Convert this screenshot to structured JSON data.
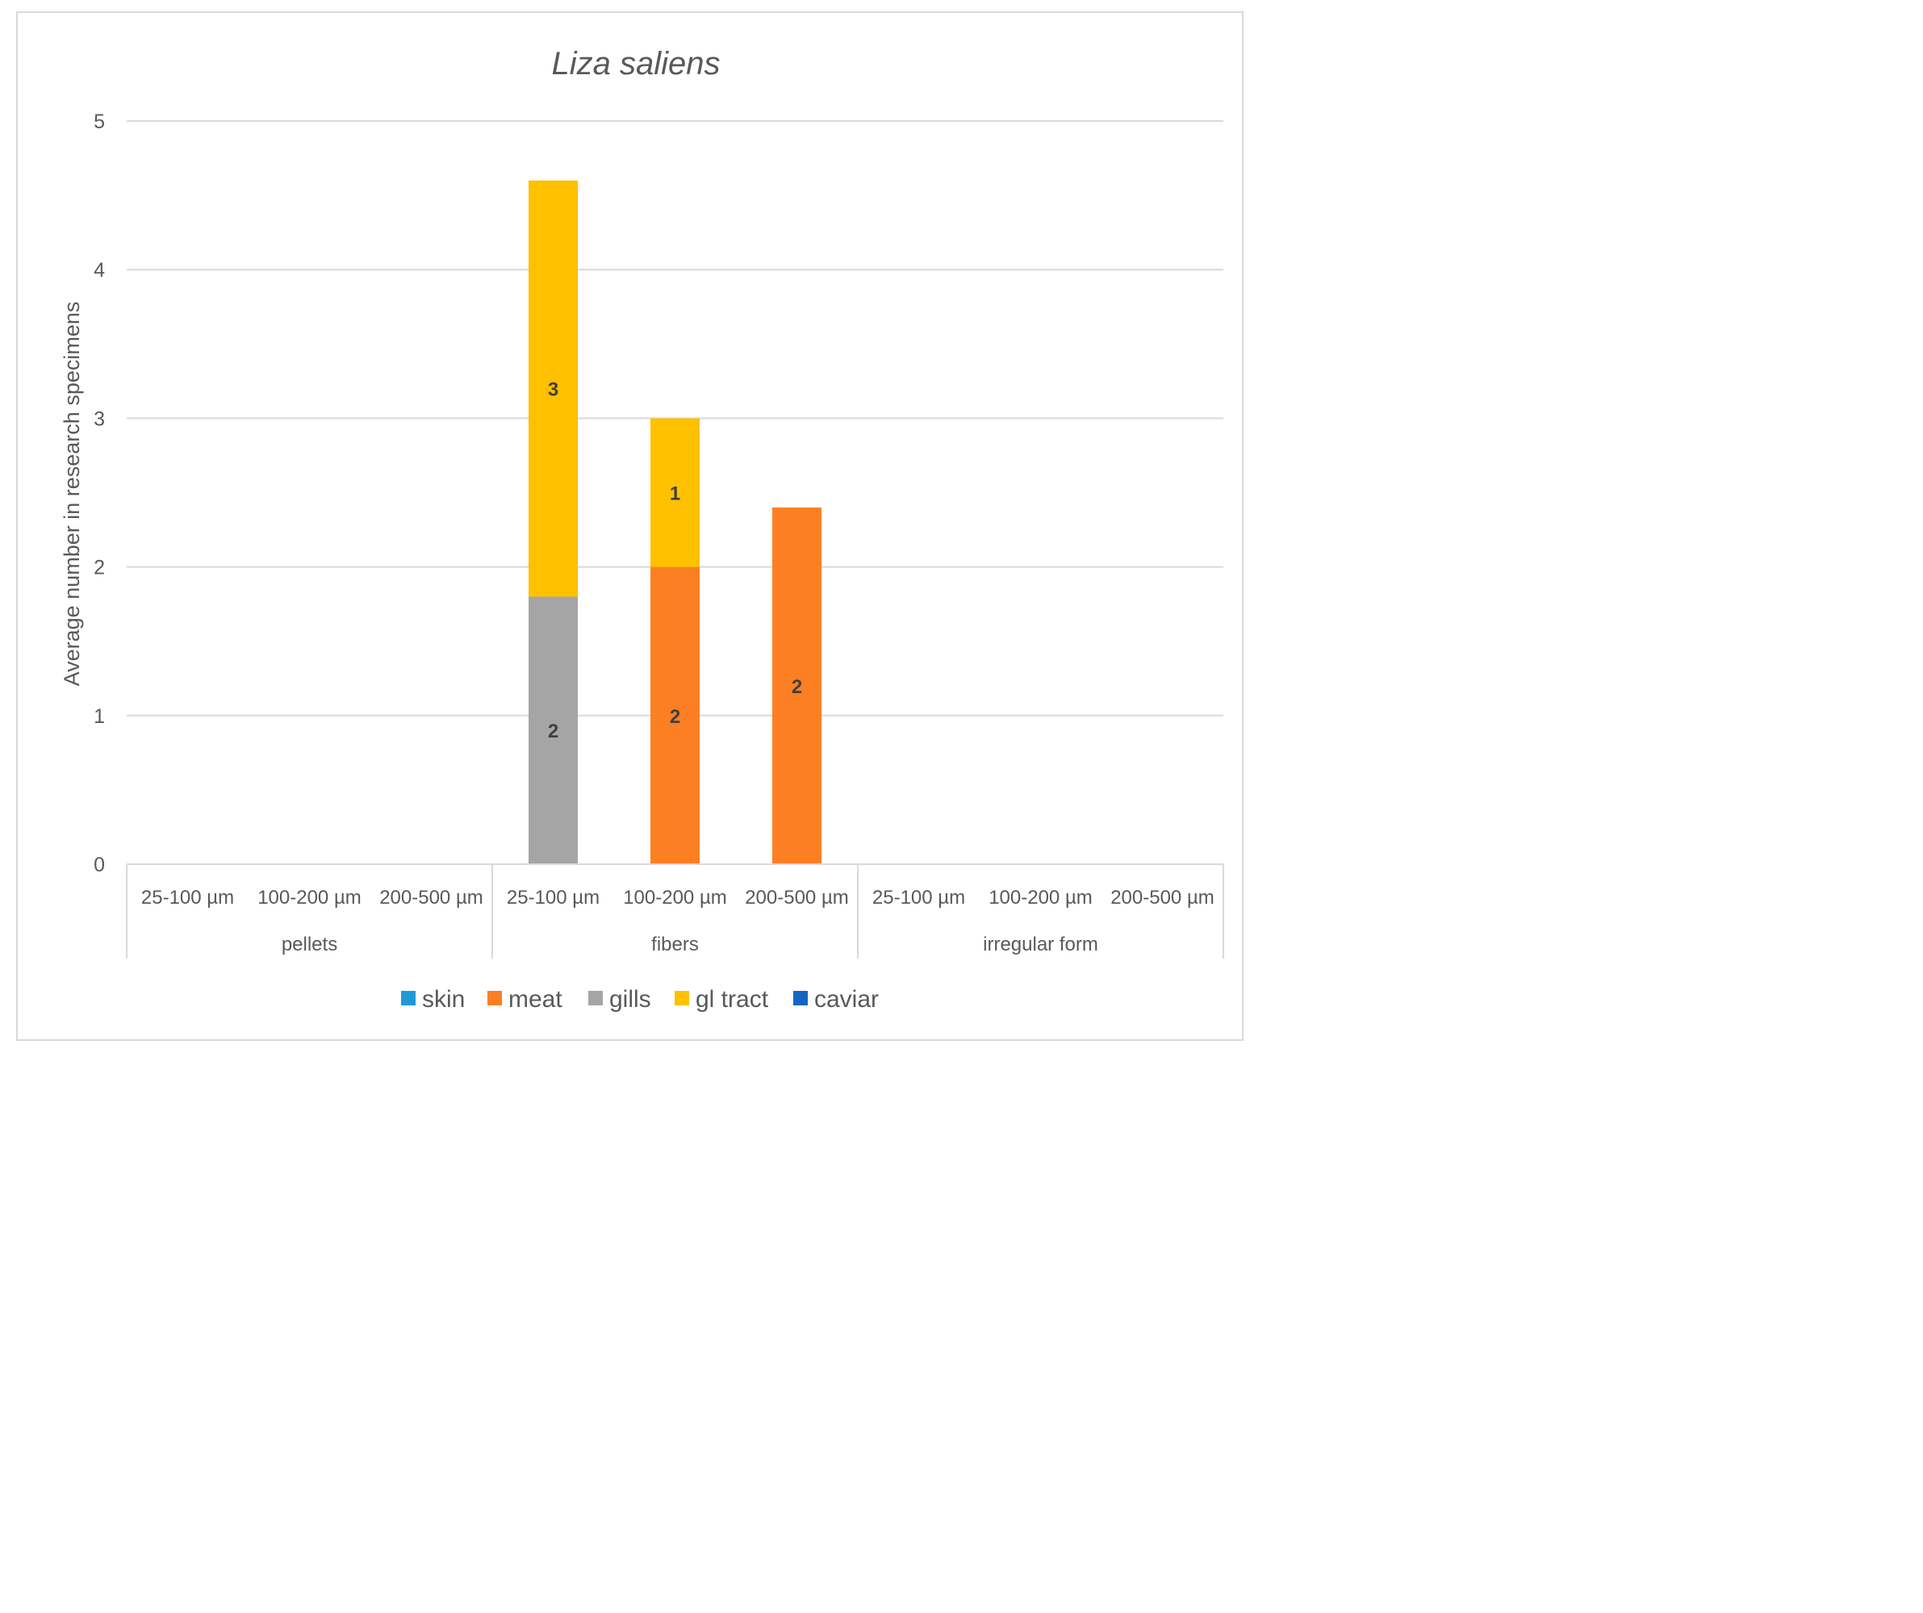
{
  "chart_data": {
    "type": "bar",
    "stacked": true,
    "title": "Liza saliens",
    "xlabel": "",
    "ylabel": "Average number in research specimens",
    "ylim": [
      0,
      5
    ],
    "yticks": [
      "0",
      "1",
      "2",
      "3",
      "4",
      "5"
    ],
    "groups": [
      {
        "label": "pellets",
        "categories": [
          "25-100 µm",
          "100-200 µm",
          "200-500 µm"
        ]
      },
      {
        "label": "fibers",
        "categories": [
          "25-100 µm",
          "100-200 µm",
          "200-500 µm"
        ]
      },
      {
        "label": "irregular form",
        "categories": [
          "25-100 µm",
          "100-200 µm",
          "200-500 µm"
        ]
      }
    ],
    "series": [
      {
        "name": "skin",
        "color": "#1f9ad6",
        "values": [
          0,
          0,
          0,
          0,
          0,
          0,
          0,
          0,
          0
        ],
        "labels": [
          "",
          "",
          "",
          "",
          "",
          "",
          "",
          "",
          ""
        ]
      },
      {
        "name": "meat",
        "color": "#fd7f24",
        "values": [
          0,
          0,
          0,
          0,
          2.0,
          2.4,
          0,
          0,
          0
        ],
        "labels": [
          "",
          "",
          "",
          "",
          "2",
          "2",
          "",
          "",
          ""
        ]
      },
      {
        "name": "gills",
        "color": "#a5a5a5",
        "values": [
          0,
          0,
          0,
          1.8,
          0,
          0,
          0,
          0,
          0
        ],
        "labels": [
          "",
          "",
          "",
          "2",
          "",
          "",
          "",
          "",
          ""
        ]
      },
      {
        "name": "gl tract",
        "color": "#ffc000",
        "values": [
          0,
          0,
          0,
          2.8,
          1.0,
          0,
          0,
          0,
          0
        ],
        "labels": [
          "",
          "",
          "",
          "3",
          "1",
          "",
          "",
          "",
          ""
        ]
      },
      {
        "name": "caviar",
        "color": "#1565c0",
        "values": [
          0,
          0,
          0,
          0,
          0,
          0,
          0,
          0,
          0
        ],
        "labels": [
          "",
          "",
          "",
          "",
          "",
          "",
          "",
          "",
          ""
        ]
      }
    ],
    "grid": true,
    "legend": "bottom"
  }
}
